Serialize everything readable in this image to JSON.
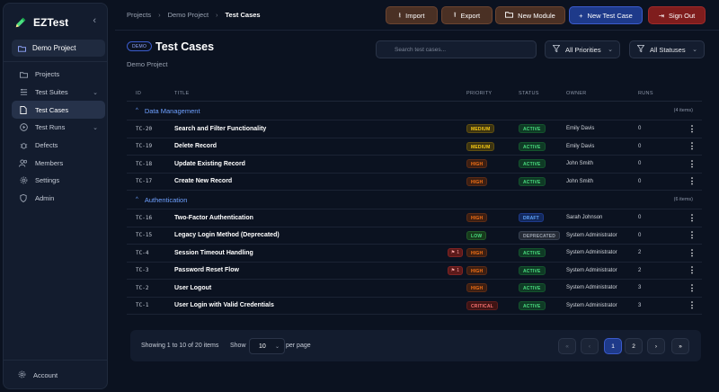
{
  "brand": {
    "name": "EZTest"
  },
  "sidebar": {
    "project": "Demo Project",
    "items": [
      {
        "label": "Projects",
        "icon": "folder-icon"
      },
      {
        "label": "Test Suites",
        "icon": "suites-icon",
        "expandable": true
      },
      {
        "label": "Test Cases",
        "icon": "document-icon",
        "active": true
      },
      {
        "label": "Test Runs",
        "icon": "play-icon",
        "expandable": true
      },
      {
        "label": "Defects",
        "icon": "bug-icon"
      },
      {
        "label": "Members",
        "icon": "users-icon"
      },
      {
        "label": "Settings",
        "icon": "gear-icon"
      },
      {
        "label": "Admin",
        "icon": "shield-icon"
      }
    ],
    "account": "Account"
  },
  "breadcrumb": [
    "Projects",
    "Demo Project",
    "Test Cases"
  ],
  "toolbar": {
    "import": "Import",
    "export": "Export",
    "new_module": "New Module",
    "new_test_case": "New Test Case",
    "sign_out": "Sign Out"
  },
  "page": {
    "badge": "DEMO",
    "title": "Test Cases",
    "subtitle": "Demo Project"
  },
  "search": {
    "placeholder": "Search test cases..."
  },
  "filters": {
    "priority": "All Priorities",
    "status": "All Statuses"
  },
  "table": {
    "columns": {
      "id": "ID",
      "title": "TITLE",
      "priority": "PRIORITY",
      "status": "STATUS",
      "owner": "OWNER",
      "runs": "RUNS"
    },
    "groups": [
      {
        "name": "Data Management",
        "count": "(4 items)",
        "rows": [
          {
            "id": "TC-20",
            "title": "Search and Filter Functionality",
            "defects": "",
            "priority": "MEDIUM",
            "status": "ACTIVE",
            "owner": "Emily Davis",
            "runs": "0"
          },
          {
            "id": "TC-19",
            "title": "Delete Record",
            "defects": "",
            "priority": "MEDIUM",
            "status": "ACTIVE",
            "owner": "Emily Davis",
            "runs": "0"
          },
          {
            "id": "TC-18",
            "title": "Update Existing Record",
            "defects": "",
            "priority": "HIGH",
            "status": "ACTIVE",
            "owner": "John Smith",
            "runs": "0"
          },
          {
            "id": "TC-17",
            "title": "Create New Record",
            "defects": "",
            "priority": "HIGH",
            "status": "ACTIVE",
            "owner": "John Smith",
            "runs": "0"
          }
        ]
      },
      {
        "name": "Authentication",
        "count": "(6 items)",
        "rows": [
          {
            "id": "TC-16",
            "title": "Two-Factor Authentication",
            "defects": "",
            "priority": "HIGH",
            "status": "DRAFT",
            "owner": "Sarah Johnson",
            "runs": "0"
          },
          {
            "id": "TC-15",
            "title": "Legacy Login Method (Deprecated)",
            "defects": "",
            "priority": "LOW",
            "status": "DEPRECATED",
            "owner": "System Administrator",
            "runs": "0"
          },
          {
            "id": "TC-4",
            "title": "Session Timeout Handling",
            "defects": "1",
            "priority": "HIGH",
            "status": "ACTIVE",
            "owner": "System Administrator",
            "runs": "2"
          },
          {
            "id": "TC-3",
            "title": "Password Reset Flow",
            "defects": "1",
            "priority": "HIGH",
            "status": "ACTIVE",
            "owner": "System Administrator",
            "runs": "2"
          },
          {
            "id": "TC-2",
            "title": "User Logout",
            "defects": "",
            "priority": "HIGH",
            "status": "ACTIVE",
            "owner": "System Administrator",
            "runs": "3"
          },
          {
            "id": "TC-1",
            "title": "User Login with Valid Credentials",
            "defects": "",
            "priority": "CRITICAL",
            "status": "ACTIVE",
            "owner": "System Administrator",
            "runs": "3"
          }
        ]
      }
    ]
  },
  "pagination": {
    "info": "Showing 1 to 10 of 20 items",
    "show": "Show",
    "per_page_value": "10",
    "per_page": "per page",
    "first": "«",
    "prev": "‹",
    "pages": [
      "1",
      "2"
    ],
    "next": "›",
    "last": "»",
    "current": "1"
  },
  "colors": {
    "accent": "#1e3a8a",
    "brand_pencil": "#4ade80",
    "sign_out": "#7f1d1d"
  }
}
